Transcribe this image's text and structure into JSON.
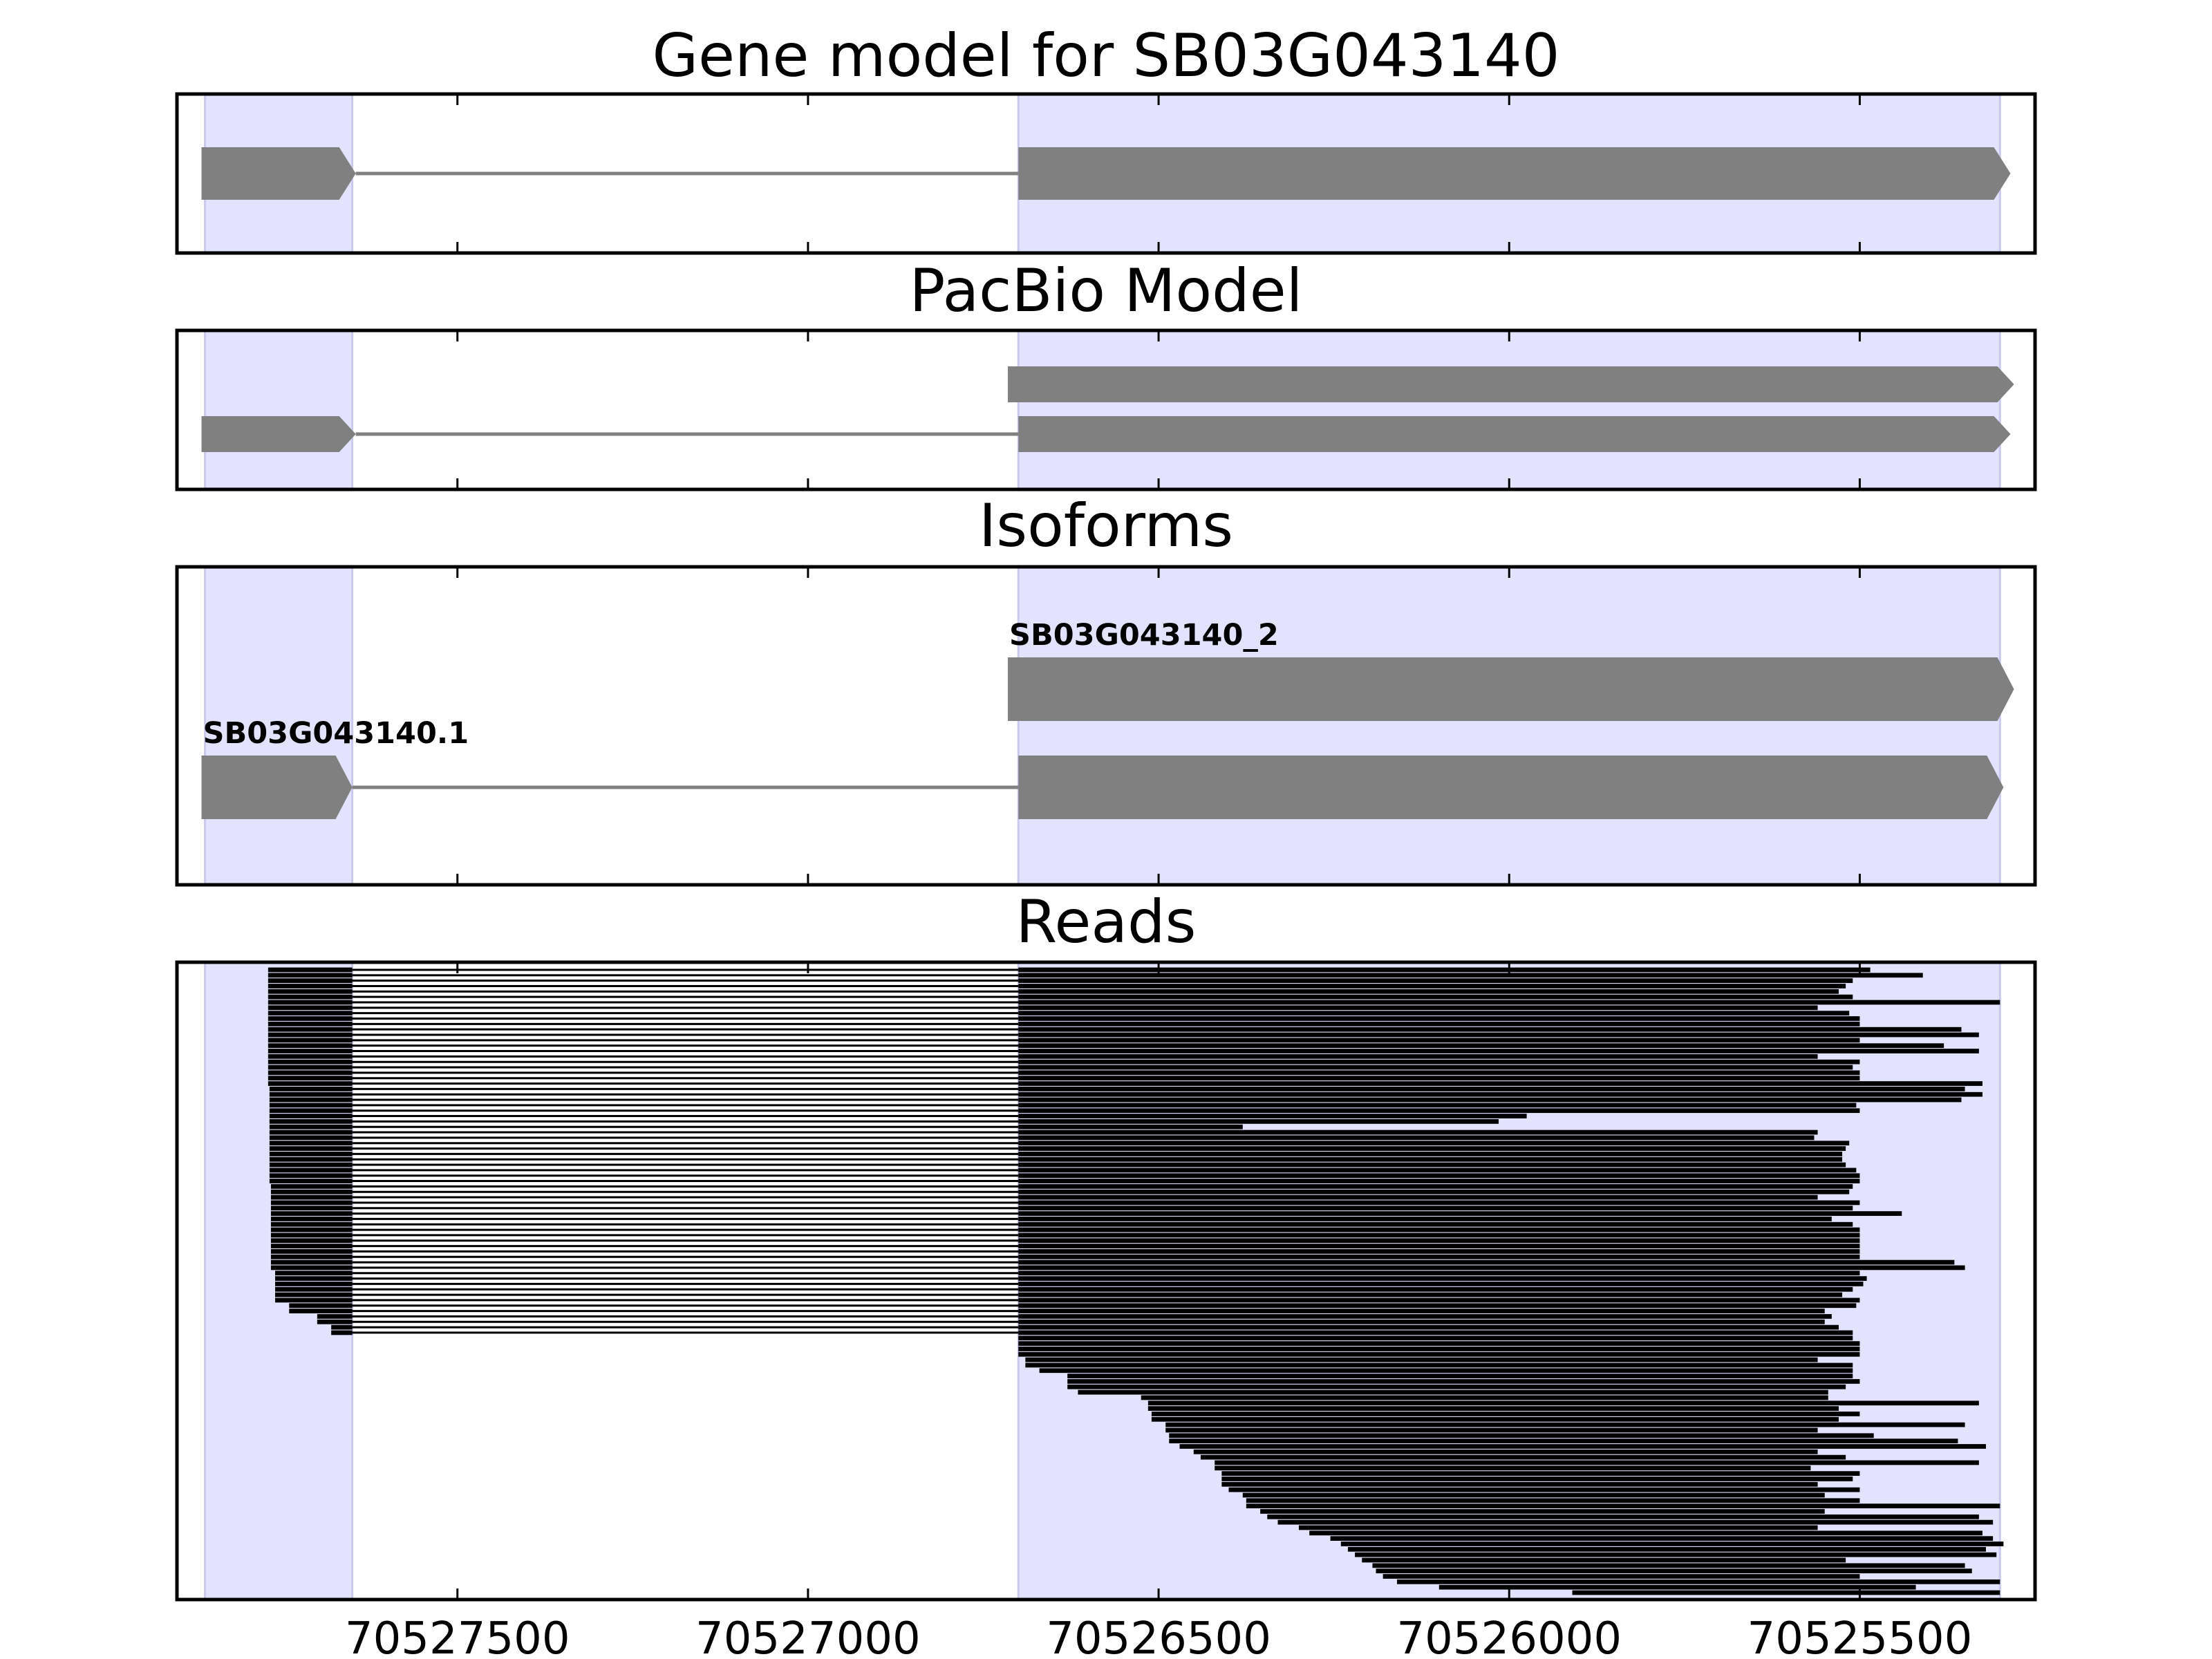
{
  "chart_data": {
    "type": "gene-model-track-plot",
    "x_axis": {
      "reversed": true,
      "xlim": [
        70525250,
        70527900
      ],
      "ticks": [
        70527500,
        70527000,
        70526500,
        70526000,
        70525500
      ],
      "tick_labels": [
        "70527500",
        "70527000",
        "70526500",
        "70526000",
        "70525500"
      ]
    },
    "shaded_exon_regions": [
      {
        "start": 70527860,
        "end": 70527650
      },
      {
        "start": 70526700,
        "end": 70525300
      }
    ],
    "colors": {
      "shade": "#e3e3ff",
      "shade_edge": "#c9c9ef",
      "feature": "#808080",
      "read": "#000000",
      "frame": "#000000"
    },
    "panels": [
      {
        "id": "gene_model",
        "title": "Gene model for SB03G043140",
        "transcripts": [
          {
            "exons": [
              [
                70527865,
                70527645
              ],
              [
                70526700,
                70525285
              ]
            ]
          }
        ]
      },
      {
        "id": "pacbio_model",
        "title": "PacBio Model",
        "transcripts": [
          {
            "exons": [
              [
                70526715,
                70525280
              ]
            ]
          },
          {
            "exons": [
              [
                70527865,
                70527645
              ],
              [
                70526700,
                70525285
              ]
            ]
          }
        ]
      },
      {
        "id": "isoforms",
        "title": "Isoforms",
        "transcripts": [
          {
            "name": "SB03G043140_2",
            "exons": [
              [
                70526715,
                70525280
              ]
            ]
          },
          {
            "name": "SB03G043140.1",
            "exons": [
              [
                70527865,
                70527650
              ],
              [
                70526700,
                70525295
              ]
            ]
          }
        ]
      },
      {
        "id": "reads",
        "title": "Reads",
        "intron_reads": [
          {
            "exon1_start": 70527770,
            "ends": [
              70525485,
              70525410,
              70525510,
              70525520,
              70525530,
              70525510,
              70525300,
              70525560,
              70525515,
              70525500,
              70525500,
              70525355,
              70525330,
              70525500,
              70525380,
              70525330,
              70525560,
              70525500,
              70525510,
              70525500,
              70525500,
              70525325
            ]
          },
          {
            "exon1_start": 70527768,
            "ends": [
              70525350,
              70525325,
              70525355,
              70525505,
              70525500,
              70525975,
              70526015,
              70526380,
              70525560,
              70525565,
              70525515,
              70525520,
              70525525,
              70525525,
              70525520,
              70525505,
              70525500,
              70525500
            ]
          },
          {
            "exon1_start": 70527766,
            "ends": [
              70525510,
              70525515,
              70525560,
              70525500,
              70525510,
              70525440,
              70525540,
              70525510,
              70525500,
              70525500,
              70525500,
              70525500,
              70525500,
              70525500,
              70525365,
              70525350
            ]
          },
          {
            "exon1_start": 70527760,
            "ends": [
              70525500,
              70525490,
              70525495,
              70525510,
              70525525,
              70525500
            ]
          },
          {
            "exon1_start": 70527740,
            "ends": [
              70525505,
              70525550
            ]
          },
          {
            "exon1_start": 70527700,
            "ends": [
              70525540,
              70525550
            ]
          },
          {
            "exon1_start": 70527680,
            "ends": [
              70525530,
              70525510
            ]
          }
        ],
        "exon2_only_reads": [
          {
            "start": 70526700,
            "ends": [
              70525510,
              70525500,
              70525500,
              70525500
            ]
          },
          {
            "start": 70526690,
            "ends": [
              70525560,
              70525510
            ]
          },
          {
            "start": 70526670,
            "ends": [
              70525510
            ]
          },
          {
            "start": 70526630,
            "ends": [
              70525510,
              70525500,
              70525520
            ]
          },
          {
            "start": 70526615,
            "ends": [
              70525545
            ]
          },
          {
            "start": 70526525,
            "ends": [
              70525545
            ]
          },
          {
            "start": 70526515,
            "ends": [
              70525330,
              70525530
            ]
          },
          {
            "start": 70526510,
            "ends": [
              70525500,
              70525530
            ]
          },
          {
            "start": 70526490,
            "ends": [
              70525350,
              70525560
            ]
          },
          {
            "start": 70526485,
            "ends": [
              70525480,
              70525360
            ]
          },
          {
            "start": 70526470,
            "ends": [
              70525320
            ]
          },
          {
            "start": 70526450,
            "ends": [
              70525560
            ]
          },
          {
            "start": 70526440,
            "ends": [
              70525520
            ]
          },
          {
            "start": 70526420,
            "ends": [
              70525330,
              70525570
            ]
          },
          {
            "start": 70526410,
            "ends": [
              70525500
            ]
          },
          {
            "start": 70526410,
            "ends": [
              70525510,
              70525560
            ]
          },
          {
            "start": 70526400,
            "ends": [
              70525500
            ]
          },
          {
            "start": 70526380,
            "ends": [
              70525550
            ]
          },
          {
            "start": 70526375,
            "ends": [
              70525500,
              70525300
            ]
          },
          {
            "start": 70526355,
            "ends": [
              70525550
            ]
          },
          {
            "start": 70526345,
            "ends": [
              70525330
            ]
          },
          {
            "start": 70526330,
            "ends": [
              70525310
            ]
          },
          {
            "start": 70526300,
            "ends": [
              70525560
            ]
          },
          {
            "start": 70526285,
            "ends": [
              70525325
            ]
          },
          {
            "start": 70526255,
            "ends": [
              70525310
            ]
          },
          {
            "start": 70526240,
            "ends": [
              70525295
            ]
          },
          {
            "start": 70526230,
            "ends": [
              70525320
            ]
          },
          {
            "start": 70526220,
            "ends": [
              70525305
            ]
          },
          {
            "start": 70526210,
            "ends": [
              70525520
            ]
          },
          {
            "start": 70526195,
            "ends": [
              70525350
            ]
          },
          {
            "start": 70526190,
            "ends": [
              70525340
            ]
          },
          {
            "start": 70526180,
            "ends": [
              70525500
            ]
          },
          {
            "start": 70526160,
            "ends": [
              70525300
            ]
          },
          {
            "start": 70526100,
            "ends": [
              70525420
            ]
          },
          {
            "start": 70525910,
            "ends": [
              70525300
            ]
          }
        ]
      }
    ]
  }
}
